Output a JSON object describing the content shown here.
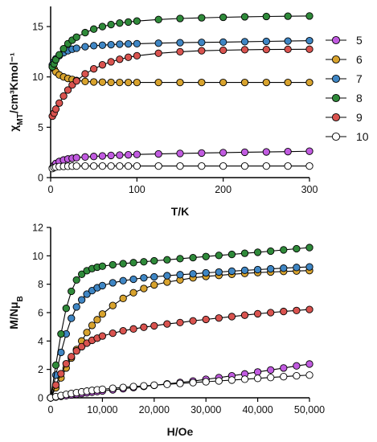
{
  "chart_data": [
    {
      "type": "scatter",
      "xlabel": "T/K",
      "ylabel": "χ_MT/cm³Kmol⁻¹",
      "xlim": [
        0,
        300
      ],
      "ylim": [
        0,
        17
      ],
      "xticks": [
        "0",
        "100",
        "200",
        "300"
      ],
      "yticks": [
        "0",
        "5",
        "10",
        "15"
      ],
      "grid": false,
      "legend_position": "right",
      "series": [
        {
          "name": "5",
          "color": "#c15be0",
          "x": [
            2,
            4,
            6,
            10,
            15,
            20,
            25,
            30,
            40,
            50,
            60,
            70,
            80,
            90,
            100,
            125,
            150,
            175,
            200,
            225,
            250,
            275,
            300
          ],
          "y": [
            0.95,
            1.2,
            1.4,
            1.6,
            1.75,
            1.85,
            1.92,
            1.98,
            2.05,
            2.1,
            2.15,
            2.2,
            2.23,
            2.26,
            2.3,
            2.35,
            2.4,
            2.44,
            2.48,
            2.52,
            2.55,
            2.58,
            2.62
          ]
        },
        {
          "name": "6",
          "color": "#d8a32e",
          "x": [
            2,
            4,
            6,
            10,
            15,
            20,
            25,
            30,
            40,
            50,
            60,
            70,
            80,
            90,
            100,
            125,
            150,
            175,
            200,
            225,
            250,
            275,
            300
          ],
          "y": [
            11.0,
            10.8,
            10.5,
            10.2,
            10.0,
            9.85,
            9.75,
            9.65,
            9.55,
            9.5,
            9.48,
            9.46,
            9.45,
            9.45,
            9.45,
            9.45,
            9.45,
            9.45,
            9.45,
            9.45,
            9.45,
            9.45,
            9.45
          ]
        },
        {
          "name": "7",
          "color": "#3f86c4",
          "x": [
            2,
            4,
            6,
            10,
            15,
            20,
            25,
            30,
            40,
            50,
            60,
            70,
            80,
            90,
            100,
            125,
            150,
            175,
            200,
            225,
            250,
            275,
            300
          ],
          "y": [
            11.2,
            11.5,
            11.8,
            12.1,
            12.4,
            12.6,
            12.75,
            12.85,
            13.0,
            13.1,
            13.15,
            13.2,
            13.25,
            13.28,
            13.3,
            13.35,
            13.4,
            13.43,
            13.46,
            13.5,
            13.53,
            13.56,
            13.6
          ]
        },
        {
          "name": "8",
          "color": "#2f8a3a",
          "x": [
            2,
            4,
            6,
            10,
            15,
            20,
            25,
            30,
            40,
            50,
            60,
            70,
            80,
            90,
            100,
            125,
            150,
            175,
            200,
            225,
            250,
            275,
            300
          ],
          "y": [
            11.0,
            11.3,
            11.7,
            12.2,
            12.8,
            13.3,
            13.65,
            13.95,
            14.4,
            14.75,
            15.0,
            15.2,
            15.35,
            15.45,
            15.55,
            15.7,
            15.8,
            15.87,
            15.92,
            15.97,
            16.0,
            16.03,
            16.05
          ]
        },
        {
          "name": "9",
          "color": "#d9534f",
          "x": [
            2,
            4,
            6,
            10,
            15,
            20,
            25,
            30,
            40,
            50,
            60,
            70,
            80,
            90,
            100,
            125,
            150,
            175,
            200,
            225,
            250,
            275,
            300
          ],
          "y": [
            6.1,
            6.4,
            6.8,
            7.4,
            8.1,
            8.7,
            9.2,
            9.6,
            10.3,
            10.8,
            11.2,
            11.5,
            11.75,
            11.95,
            12.1,
            12.35,
            12.5,
            12.6,
            12.65,
            12.7,
            12.72,
            12.74,
            12.75
          ]
        },
        {
          "name": "10",
          "color": "#ffffff",
          "x": [
            2,
            4,
            6,
            10,
            15,
            20,
            25,
            30,
            40,
            50,
            60,
            70,
            80,
            90,
            100,
            125,
            150,
            175,
            200,
            225,
            250,
            275,
            300
          ],
          "y": [
            0.9,
            1.0,
            1.05,
            1.1,
            1.12,
            1.13,
            1.14,
            1.15,
            1.15,
            1.15,
            1.15,
            1.15,
            1.15,
            1.15,
            1.15,
            1.15,
            1.15,
            1.15,
            1.15,
            1.15,
            1.15,
            1.15,
            1.15
          ]
        }
      ]
    },
    {
      "type": "scatter",
      "xlabel": "H/Oe",
      "ylabel": "M/Nμ_B",
      "xlim": [
        0,
        50000
      ],
      "ylim": [
        0,
        12
      ],
      "xticks": [
        "0",
        "10,000",
        "20,000",
        "30,000",
        "40,000",
        "50,000"
      ],
      "yticks": [
        "0",
        "2",
        "4",
        "6",
        "8",
        "10",
        "12"
      ],
      "grid": false,
      "series": [
        {
          "name": "5",
          "color": "#c15be0",
          "x": [
            0,
            1000,
            2000,
            3000,
            4000,
            5000,
            6000,
            7000,
            8000,
            9000,
            10000,
            12000,
            14000,
            16000,
            18000,
            20000,
            22500,
            25000,
            27500,
            30000,
            32500,
            35000,
            37500,
            40000,
            42500,
            45000,
            47500,
            50000
          ],
          "y": [
            0,
            0.05,
            0.1,
            0.15,
            0.2,
            0.25,
            0.3,
            0.35,
            0.4,
            0.44,
            0.48,
            0.56,
            0.64,
            0.72,
            0.8,
            0.88,
            0.98,
            1.08,
            1.18,
            1.3,
            1.42,
            1.55,
            1.68,
            1.82,
            1.96,
            2.1,
            2.25,
            2.38
          ]
        },
        {
          "name": "6",
          "color": "#d8a32e",
          "x": [
            0,
            1000,
            2000,
            3000,
            4000,
            5000,
            6000,
            7000,
            8000,
            9000,
            10000,
            12000,
            14000,
            16000,
            18000,
            20000,
            22500,
            25000,
            27500,
            30000,
            32500,
            35000,
            37500,
            40000,
            42500,
            45000,
            47500,
            50000
          ],
          "y": [
            0,
            0.7,
            1.4,
            2.1,
            2.8,
            3.4,
            4.0,
            4.6,
            5.1,
            5.5,
            5.9,
            6.5,
            7.0,
            7.4,
            7.7,
            7.95,
            8.15,
            8.3,
            8.45,
            8.55,
            8.62,
            8.7,
            8.76,
            8.82,
            8.86,
            8.9,
            8.93,
            8.96
          ]
        },
        {
          "name": "7",
          "color": "#3f86c4",
          "x": [
            0,
            1000,
            2000,
            3000,
            4000,
            5000,
            6000,
            7000,
            8000,
            9000,
            10000,
            12000,
            14000,
            16000,
            18000,
            20000,
            22500,
            25000,
            27500,
            30000,
            32500,
            35000,
            37500,
            40000,
            42500,
            45000,
            47500,
            50000
          ],
          "y": [
            0,
            1.6,
            3.2,
            4.5,
            5.6,
            6.4,
            6.9,
            7.3,
            7.55,
            7.75,
            7.9,
            8.1,
            8.25,
            8.35,
            8.45,
            8.52,
            8.6,
            8.67,
            8.73,
            8.8,
            8.86,
            8.92,
            8.98,
            9.03,
            9.08,
            9.13,
            9.18,
            9.22
          ]
        },
        {
          "name": "8",
          "color": "#2f8a3a",
          "x": [
            0,
            1000,
            2000,
            3000,
            4000,
            5000,
            6000,
            7000,
            8000,
            9000,
            10000,
            12000,
            14000,
            16000,
            18000,
            20000,
            22500,
            25000,
            27500,
            30000,
            32500,
            35000,
            37500,
            40000,
            42500,
            45000,
            47500,
            50000
          ],
          "y": [
            0,
            2.3,
            4.5,
            6.3,
            7.5,
            8.3,
            8.7,
            8.95,
            9.1,
            9.2,
            9.27,
            9.37,
            9.45,
            9.52,
            9.58,
            9.65,
            9.72,
            9.8,
            9.87,
            9.95,
            10.03,
            10.1,
            10.18,
            10.25,
            10.33,
            10.42,
            10.5,
            10.58
          ]
        },
        {
          "name": "9",
          "color": "#d9534f",
          "x": [
            0,
            1000,
            2000,
            3000,
            4000,
            5000,
            6000,
            7000,
            8000,
            9000,
            10000,
            12000,
            14000,
            16000,
            18000,
            20000,
            22500,
            25000,
            27500,
            30000,
            32500,
            35000,
            37500,
            40000,
            42500,
            45000,
            47500,
            50000
          ],
          "y": [
            0,
            0.9,
            1.7,
            2.4,
            2.9,
            3.3,
            3.6,
            3.85,
            4.05,
            4.2,
            4.35,
            4.55,
            4.72,
            4.85,
            4.97,
            5.07,
            5.2,
            5.3,
            5.42,
            5.52,
            5.62,
            5.72,
            5.82,
            5.92,
            6.0,
            6.08,
            6.15,
            6.22
          ]
        },
        {
          "name": "10",
          "color": "#ffffff",
          "x": [
            0,
            1000,
            2000,
            3000,
            4000,
            5000,
            6000,
            7000,
            8000,
            9000,
            10000,
            12000,
            14000,
            16000,
            18000,
            20000,
            22500,
            25000,
            27500,
            30000,
            32500,
            35000,
            37500,
            40000,
            42500,
            45000,
            47500,
            50000
          ],
          "y": [
            0,
            0.08,
            0.16,
            0.24,
            0.3,
            0.36,
            0.42,
            0.47,
            0.52,
            0.56,
            0.6,
            0.67,
            0.73,
            0.79,
            0.84,
            0.89,
            0.95,
            1.01,
            1.07,
            1.13,
            1.19,
            1.25,
            1.31,
            1.37,
            1.43,
            1.49,
            1.55,
            1.6
          ]
        }
      ]
    }
  ]
}
